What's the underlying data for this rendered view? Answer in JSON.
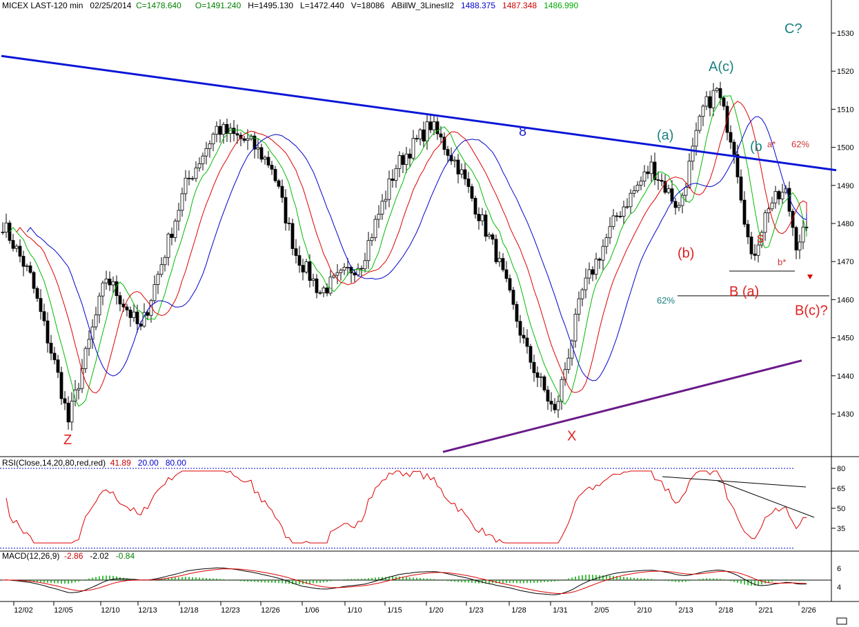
{
  "header": {
    "symbol": "MICEX LAST-120 min",
    "date": "02/25/2014",
    "close": "C=1478.640",
    "open": "O=1491.240",
    "high": "H=1495.130",
    "low": "L=1472.440",
    "volume": "V=18086",
    "indicator": "ABillW_3LinesII2",
    "ind1": "1488.375",
    "ind2": "1487.348",
    "ind3": "1486.990",
    "colors": {
      "text": "#000000",
      "close": "#008000",
      "ind1": "#0000cc",
      "ind2": "#cc0000",
      "ind3": "#00aa00"
    }
  },
  "rsi_panel": {
    "label": "RSI(Close,14,20,80,red,red)",
    "value": "41.89",
    "lower": "20.00",
    "upper": "80.00",
    "ticks": [
      "80",
      "65",
      "50",
      "35"
    ]
  },
  "macd_panel": {
    "label": "MACD(12,26,9)",
    "v1": "-2.86",
    "v2": "-2.02",
    "v3": "-0.84",
    "ticks": [
      "6",
      "4"
    ]
  },
  "chart_data": {
    "type": "candlestick",
    "y_ticks": [
      "1530",
      "1520",
      "1510",
      "1500",
      "1490",
      "1480",
      "1470",
      "1460",
      "1450",
      "1440",
      "1430"
    ],
    "ylim": [
      1420,
      1538
    ],
    "x_ticks": [
      "12/02",
      "12/05",
      "12/10",
      "12/13",
      "12/18",
      "12/23",
      "12/26",
      "1/06",
      "1/10",
      "1/15",
      "1/20",
      "1/23",
      "1/28",
      "1/31",
      "2/05",
      "2/10",
      "2/13",
      "2/18",
      "2/21",
      "2/26"
    ],
    "key_closes": [
      {
        "bar": 0,
        "value": 1480
      },
      {
        "bar": 8,
        "value": 1466
      },
      {
        "bar": 16,
        "value": 1440
      },
      {
        "bar": 19,
        "value": 1428
      },
      {
        "bar": 30,
        "value": 1466
      },
      {
        "bar": 40,
        "value": 1452
      },
      {
        "bar": 53,
        "value": 1490
      },
      {
        "bar": 62,
        "value": 1505
      },
      {
        "bar": 72,
        "value": 1501
      },
      {
        "bar": 78,
        "value": 1495
      },
      {
        "bar": 85,
        "value": 1472
      },
      {
        "bar": 92,
        "value": 1462
      },
      {
        "bar": 104,
        "value": 1470
      },
      {
        "bar": 114,
        "value": 1495
      },
      {
        "bar": 124,
        "value": 1506
      },
      {
        "bar": 132,
        "value": 1495
      },
      {
        "bar": 143,
        "value": 1472
      },
      {
        "bar": 152,
        "value": 1446
      },
      {
        "bar": 160,
        "value": 1430
      },
      {
        "bar": 168,
        "value": 1462
      },
      {
        "bar": 178,
        "value": 1482
      },
      {
        "bar": 188,
        "value": 1495
      },
      {
        "bar": 196,
        "value": 1484
      },
      {
        "bar": 203,
        "value": 1510
      },
      {
        "bar": 207,
        "value": 1515
      },
      {
        "bar": 212,
        "value": 1500
      },
      {
        "bar": 217,
        "value": 1470
      },
      {
        "bar": 222,
        "value": 1485
      },
      {
        "bar": 227,
        "value": 1488
      },
      {
        "bar": 230,
        "value": 1475
      },
      {
        "bar": 233,
        "value": 1479
      }
    ],
    "annotations": [
      {
        "text": "C?",
        "price": 1530,
        "bar": 227,
        "color": "#1a8080"
      },
      {
        "text": "A(c)",
        "price": 1520,
        "bar": 205,
        "color": "#1a8080"
      },
      {
        "text": "(a)",
        "price": 1502,
        "bar": 190,
        "color": "#1a8080"
      },
      {
        "text": "(b",
        "price": 1499,
        "bar": 217,
        "color": "#1a8080"
      },
      {
        "text": "a*",
        "price": 1500,
        "bar": 222,
        "color": "#cc3333"
      },
      {
        "text": "62%",
        "price": 1500,
        "bar": 229,
        "color": "#cc3333"
      },
      {
        "text": "8",
        "price": 1503,
        "bar": 150,
        "color": "#1f1fd0"
      },
      {
        "text": "(b)",
        "price": 1471,
        "bar": 196,
        "color": "#e02020"
      },
      {
        "text": "s",
        "price": 1475,
        "bar": 219,
        "color": "#e02020"
      },
      {
        "text": "b*",
        "price": 1469,
        "bar": 225,
        "color": "#cc3333"
      },
      {
        "text": "B (a)",
        "price": 1461,
        "bar": 211,
        "color": "#e02020"
      },
      {
        "text": "62%",
        "price": 1459,
        "bar": 190,
        "color": "#1a8080"
      },
      {
        "text": "B(c)?",
        "price": 1456,
        "bar": 230,
        "color": "#e02020"
      },
      {
        "text": "Z",
        "price": 1422,
        "bar": 18,
        "color": "#e02020"
      },
      {
        "text": "X",
        "price": 1423,
        "bar": 164,
        "color": "#e02020"
      }
    ],
    "trendlines": [
      {
        "name": "upper-resistance",
        "color": "#0a16d6",
        "from": {
          "bar": 0,
          "price": 1524
        },
        "to": {
          "bar": 242,
          "price": 1494
        }
      },
      {
        "name": "lower-support",
        "color": "#6a1a8a",
        "from": {
          "bar": 128,
          "price": 1420
        },
        "to": {
          "bar": 232,
          "price": 1444
        }
      },
      {
        "name": "level-1470",
        "color": "#000000",
        "from": {
          "bar": 211,
          "price": 1467.5
        },
        "to": {
          "bar": 230,
          "price": 1467.5
        }
      },
      {
        "name": "level-1461",
        "color": "#000000",
        "from": {
          "bar": 196,
          "price": 1461
        },
        "to": {
          "bar": 240,
          "price": 1461
        }
      }
    ],
    "series_colors": {
      "fast": "#00bb00",
      "mid": "#dd0000",
      "slow": "#0000cc",
      "candle": "#000000",
      "rsi": "#dd0000",
      "macd": "#000000",
      "signal": "#dd0000",
      "hist": "#00aa00"
    }
  }
}
